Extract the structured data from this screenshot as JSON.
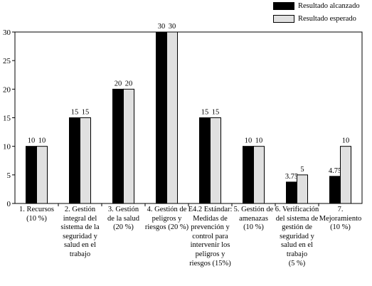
{
  "chart_data": {
    "type": "bar",
    "categories": [
      "1. Recursos\n(10 %)",
      "2. Gestión\nintegral del\nsistema de la\nseguridad y\nsalud en el\ntrabajo",
      "3. Gestión\nde la salud\n(20 %)",
      "4. Gestión de\npeligros y\nriesgos (20 %)",
      "E4.2 Estándar:\nMedidas de\nprevención y\ncontrol para\nintervenir los\npeligros y\nriesgos (15%)",
      "5. Gestión de\namenazas\n(10 %)",
      "6. Verificación\ndel sistema de\ngestión de\nseguridad y\nsalud en el\ntrabajo\n(5 %)",
      "7. Mejoramiento\n(10 %)"
    ],
    "series": [
      {
        "name": "Resultado alcanzado",
        "color": "#000000",
        "values": [
          10,
          15,
          20,
          30,
          15,
          10,
          3.75,
          4.75
        ],
        "labels": [
          "10",
          "15",
          "20",
          "30",
          "15",
          "10",
          "3.75",
          "4.75"
        ]
      },
      {
        "name": "Resultado esperado",
        "color": "#e0e0e0",
        "values": [
          10,
          15,
          20,
          30,
          15,
          10,
          5,
          10
        ],
        "labels": [
          "10",
          "15",
          "20",
          "30",
          "15",
          "10",
          "5",
          "10"
        ]
      }
    ],
    "yticks": [
      "0",
      "5",
      "10",
      "15",
      "20",
      "25",
      "30"
    ],
    "ylim": [
      0,
      30
    ],
    "legend_position": "top-right",
    "grid": false
  }
}
